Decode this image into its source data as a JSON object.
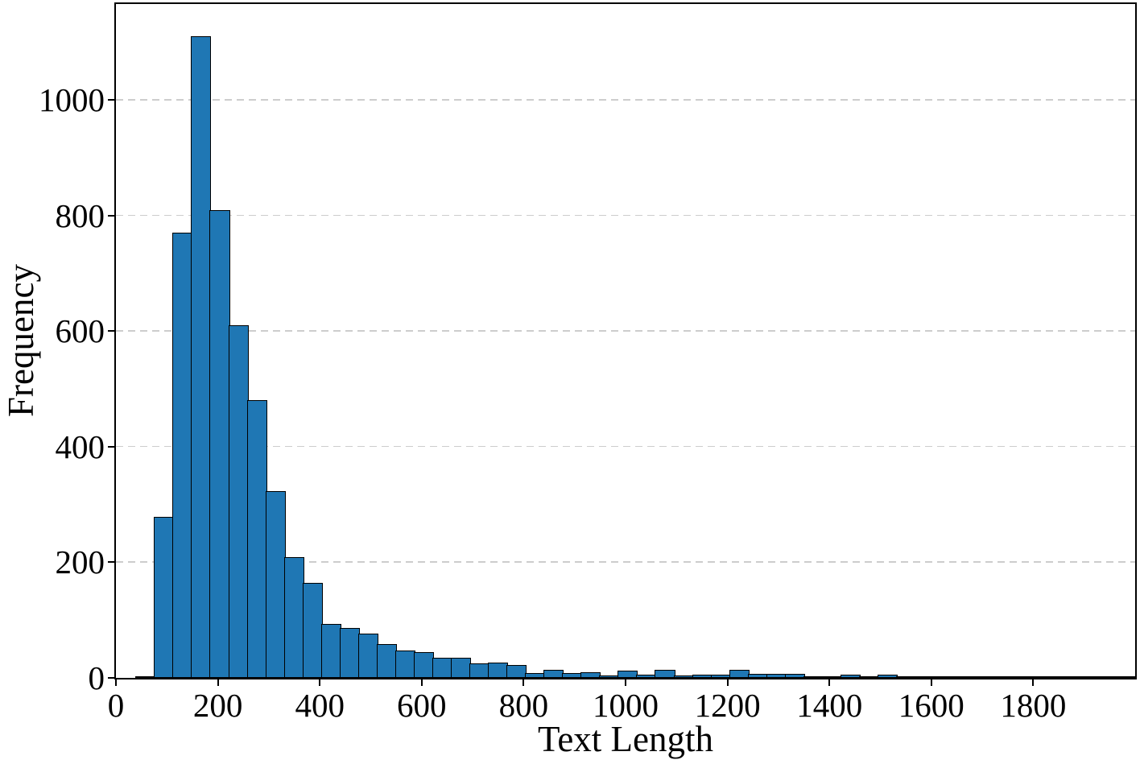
{
  "chart_data": {
    "type": "bar",
    "subtype": "histogram",
    "title": "",
    "xlabel": "Text Length",
    "ylabel": "Frequency",
    "xlim": [
      0,
      2000
    ],
    "ylim": [
      0,
      1166
    ],
    "x_ticks": [
      0,
      200,
      400,
      600,
      800,
      1000,
      1200,
      1400,
      1600,
      1800
    ],
    "y_ticks": [
      0,
      200,
      400,
      600,
      800,
      1000
    ],
    "grid": "horizontal-dashed",
    "legend": "none",
    "bin_start": 40,
    "bin_width": 36.4,
    "counts": [
      3,
      278,
      770,
      1110,
      810,
      610,
      480,
      323,
      209,
      165,
      93,
      87,
      77,
      58,
      47,
      45,
      35,
      35,
      25,
      26,
      22,
      8,
      14,
      8,
      10,
      4,
      13,
      6,
      14,
      4,
      6,
      6,
      14,
      7,
      7,
      7,
      1,
      3,
      5,
      1,
      6,
      1,
      3,
      1,
      2,
      1,
      2,
      1,
      1,
      2,
      1,
      1,
      1,
      3
    ],
    "colors": {
      "bar_fill": "#1f77b4",
      "bar_edge": "#000000",
      "gridline": "#cdcdcd",
      "spine": "#000000",
      "text": "#000000",
      "background": "#ffffff"
    }
  }
}
